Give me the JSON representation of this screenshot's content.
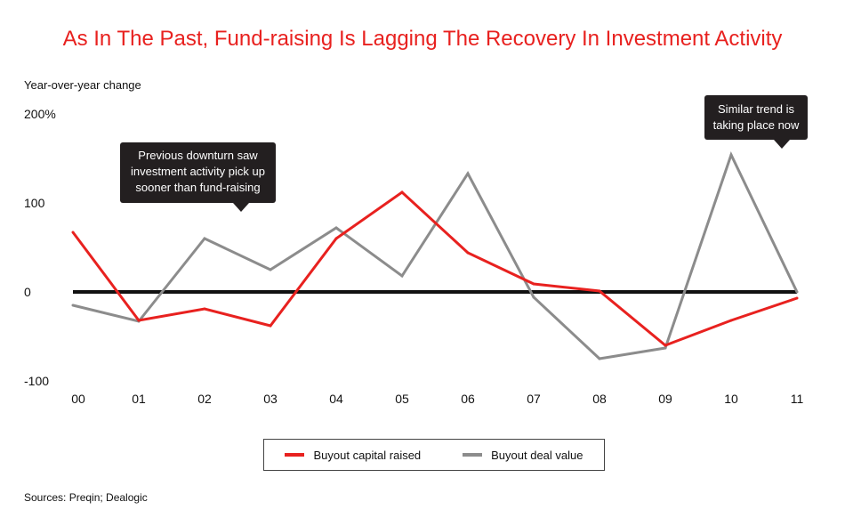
{
  "header": {
    "title": "As In The Past, Fund-raising Is Lagging The Recovery In Investment Activity",
    "y_axis_label": "Year-over-year change"
  },
  "footer": {
    "sources": "Sources: Preqin; Dealogic"
  },
  "annotations": [
    {
      "text": "Previous downturn saw\ninvestment activity pick up\nsooner than fund-raising"
    },
    {
      "text": "Similar trend is\ntaking place now"
    }
  ],
  "chart_data": {
    "type": "line",
    "title": "As In The Past, Fund-raising Is Lagging The Recovery In Investment Activity",
    "ylabel": "Year-over-year change",
    "xlabel": "",
    "categories": [
      "00",
      "01",
      "02",
      "03",
      "04",
      "05",
      "06",
      "07",
      "08",
      "09",
      "10",
      "11"
    ],
    "ylim": [
      -100,
      200
    ],
    "y_ticks": [
      {
        "value": 200,
        "label": "200%"
      },
      {
        "value": 100,
        "label": "100"
      },
      {
        "value": 0,
        "label": "0"
      },
      {
        "value": -100,
        "label": "-100"
      }
    ],
    "grid": false,
    "zero_line": true,
    "legend_position": "bottom",
    "series": [
      {
        "name": "Buyout capital raised",
        "color": "#e8211f",
        "values": [
          67,
          -32,
          -19,
          -38,
          60,
          112,
          44,
          9,
          1,
          -60,
          -32,
          -7
        ]
      },
      {
        "name": "Buyout deal value",
        "color": "#8c8c8c",
        "values": [
          -15,
          -33,
          60,
          25,
          72,
          18,
          133,
          -6,
          -75,
          -63,
          154,
          0
        ]
      }
    ]
  }
}
